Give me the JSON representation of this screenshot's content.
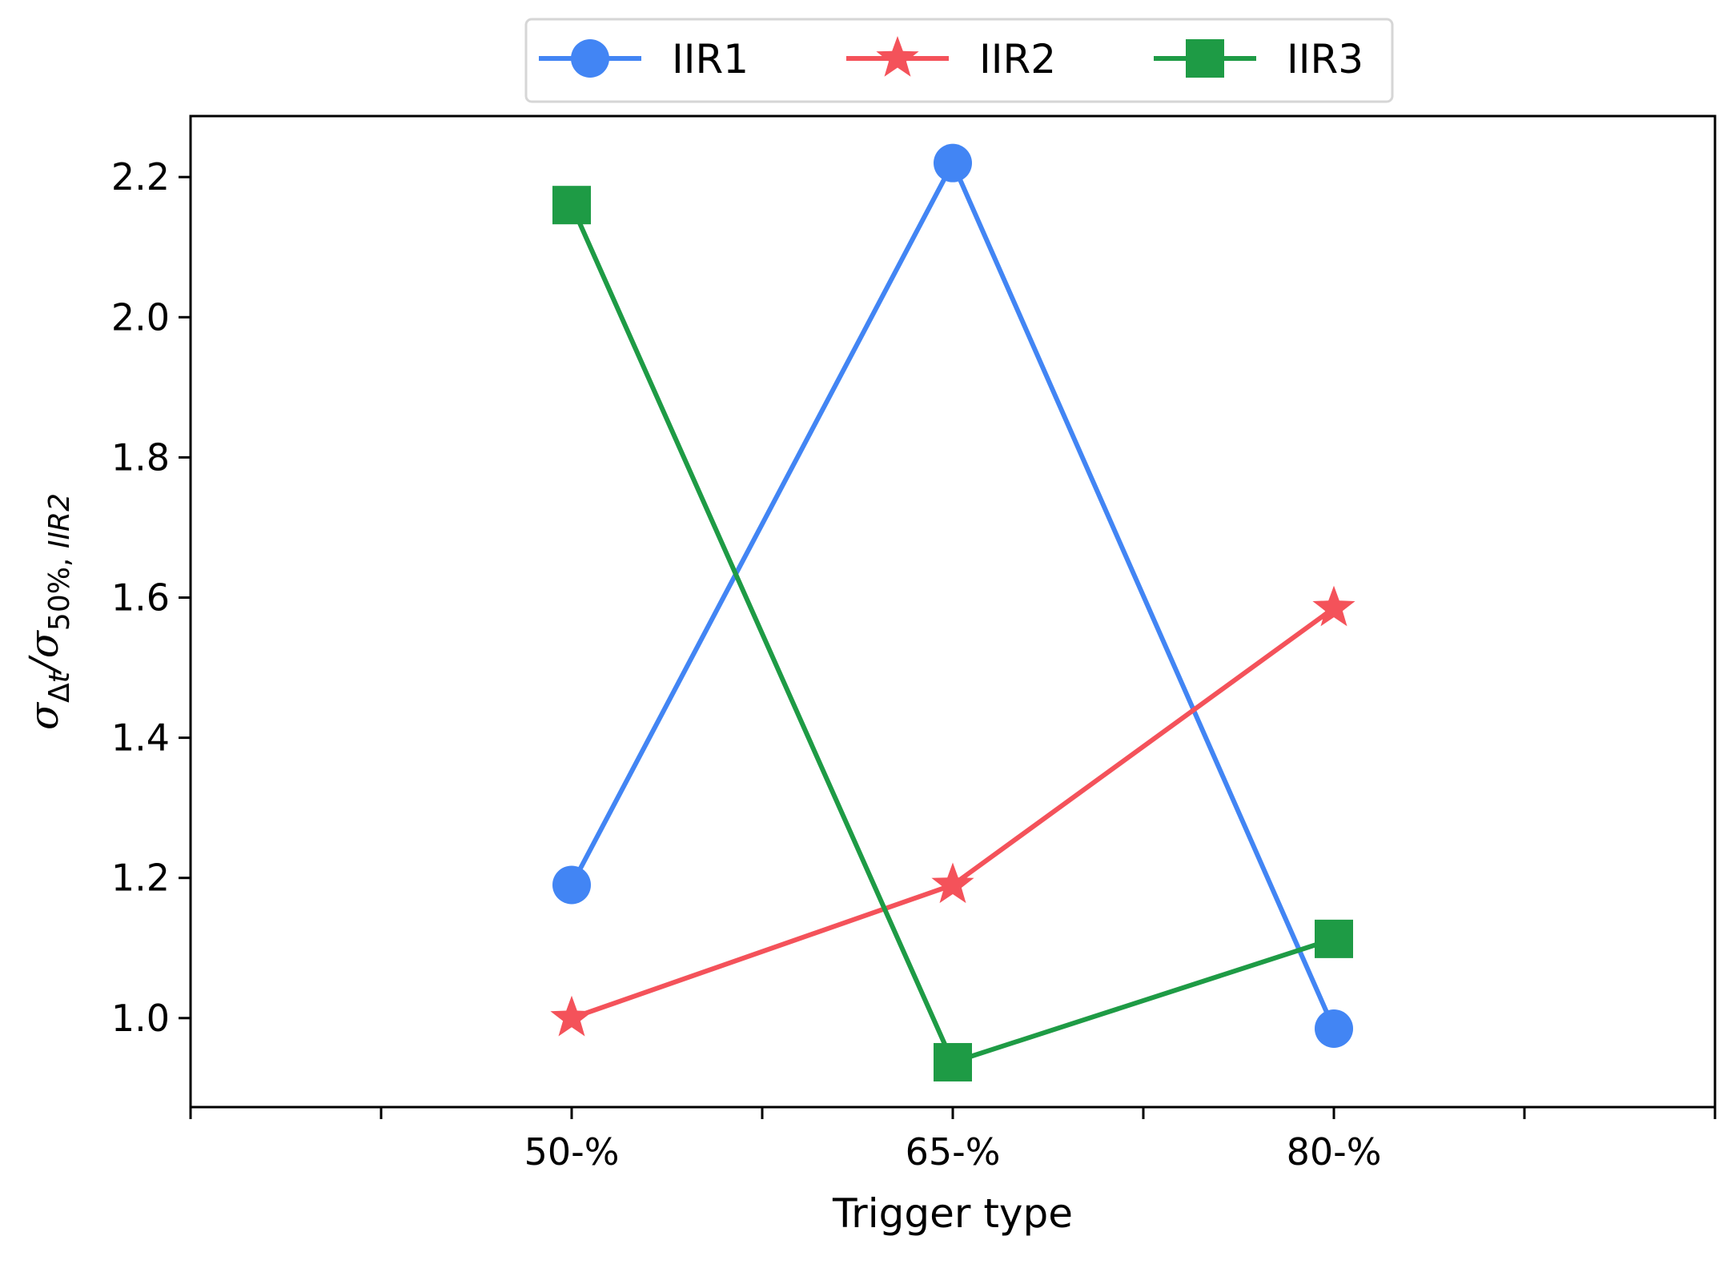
{
  "chart_data": {
    "type": "line",
    "categories": [
      "50-%",
      "65-%",
      "80-%"
    ],
    "xlabel": "Trigger type",
    "ylabel": {
      "sigma": "σ",
      "sub1": "Δ",
      "sub1_italic": "t",
      "slash": "/",
      "sub2": "50%, ",
      "sub2_italic": "IIR2"
    },
    "ylim": [
      0.873,
      2.287
    ],
    "yticks": [
      1.0,
      1.2,
      1.4,
      1.6,
      1.8,
      2.0,
      2.2
    ],
    "ytick_labels": [
      "1.0",
      "1.2",
      "1.4",
      "1.6",
      "1.8",
      "2.0",
      "2.2"
    ],
    "xlim": [
      -1,
      3
    ],
    "xticks_minor": [
      -1,
      -0.5,
      0,
      0.5,
      1,
      1.5,
      2,
      2.5,
      3
    ],
    "grid": false,
    "legend_position": "top-center",
    "series": [
      {
        "name": "IIR1",
        "color": "#4285f4",
        "marker": "circle",
        "values": [
          1.19,
          2.22,
          0.985
        ]
      },
      {
        "name": "IIR2",
        "color": "#f4525a",
        "marker": "star",
        "values": [
          1.0,
          1.19,
          1.585
        ]
      },
      {
        "name": "IIR3",
        "color": "#1e9b45",
        "marker": "square",
        "values": [
          2.16,
          0.937,
          1.113
        ]
      }
    ]
  }
}
